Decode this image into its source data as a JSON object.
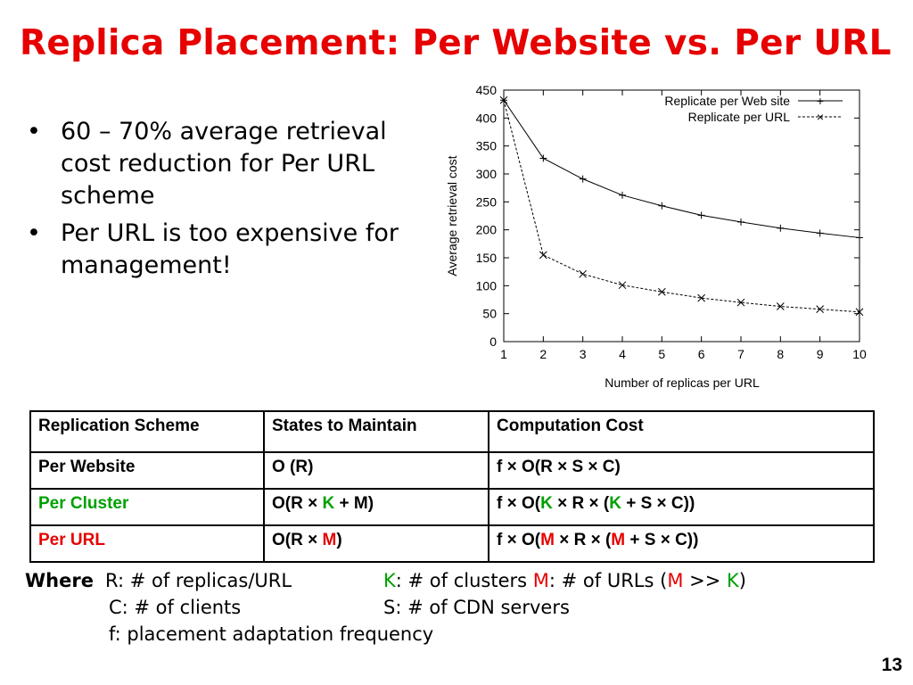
{
  "title": "Replica Placement: Per Website vs. Per URL",
  "bullets": [
    "60 – 70% average retrieval cost reduction for Per URL scheme",
    "Per URL is too expensive for management!"
  ],
  "chart_data": {
    "type": "line",
    "x": [
      1,
      2,
      3,
      4,
      5,
      6,
      7,
      8,
      9,
      10
    ],
    "series": [
      {
        "name": "Replicate per Web site",
        "marker": "+",
        "style": "solid",
        "values": [
          432,
          328,
          291,
          262,
          243,
          226,
          214,
          203,
          194,
          186
        ]
      },
      {
        "name": "Replicate per URL",
        "marker": "x",
        "style": "dashed",
        "values": [
          432,
          155,
          121,
          101,
          89,
          78,
          70,
          63,
          58,
          53
        ]
      }
    ],
    "xlabel": "Number of replicas per URL",
    "ylabel": "Average retrieval cost",
    "xlim": [
      1,
      10
    ],
    "ylim": [
      0,
      450
    ],
    "xticks": [
      1,
      2,
      3,
      4,
      5,
      6,
      7,
      8,
      9,
      10
    ],
    "yticks": [
      0,
      50,
      100,
      150,
      200,
      250,
      300,
      350,
      400,
      450
    ],
    "grid": false,
    "legend": "top-right"
  },
  "table": {
    "headers": [
      "Replication Scheme",
      "States to Maintain",
      "Computation Cost"
    ],
    "rows": [
      {
        "scheme": "Per Website",
        "states": "O (R)",
        "cost": "f × O(R × S × C)"
      },
      {
        "scheme": "Per Cluster",
        "states_a": "O(R × ",
        "states_k": "K",
        "states_b": " + M)",
        "cost_a": "f × O(",
        "cost_k1": "K",
        "cost_b": " × R × (",
        "cost_k2": "K",
        "cost_c": " + S × C))"
      },
      {
        "scheme": "Per URL",
        "states_a": "O(R × ",
        "states_m": "M",
        "states_b": ")",
        "cost_a": "f × O(",
        "cost_m1": "M",
        "cost_b": " × R × (",
        "cost_m2": "M",
        "cost_c": " + S × C))"
      }
    ]
  },
  "notes": {
    "where": "Where",
    "r": "R: # of replicas/URL",
    "k_sym": "K",
    "k_text": ": # of clusters",
    "m_sym": "M",
    "m_text": ": # of URLs  (",
    "m_sym2": "M",
    "gg": " >> ",
    "k_sym2": "K",
    "close": ")",
    "c": "C:  # of clients",
    "s": "S: # of CDN servers",
    "f": "f: placement adaptation frequency"
  },
  "page_number": "13",
  "colors": {
    "title": "#e60000",
    "green": "#00a000",
    "red": "#e60000"
  }
}
